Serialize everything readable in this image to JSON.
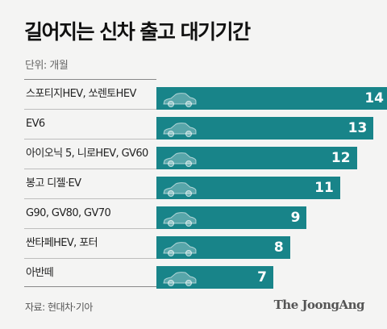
{
  "title": "길어지는 신차 출고 대기기간",
  "unit_label": "단위: 개월",
  "source": "자료: 현대차·기아",
  "brand": "The JoongAng",
  "colors": {
    "bar": "#188489",
    "background": "#f4f4f3"
  },
  "chart_data": {
    "type": "bar",
    "orientation": "horizontal",
    "categories": [
      "스포티지HEV, 쏘렌토HEV",
      "EV6",
      "아이오닉 5, 니로HEV, GV60",
      "봉고 디젤·EV",
      "G90, GV80, GV70",
      "싼타페HEV, 포터",
      "아반떼"
    ],
    "values": [
      14,
      13,
      12,
      11,
      9,
      8,
      7
    ],
    "title": "길어지는 신차 출고 대기기간",
    "unit": "개월",
    "xlim": [
      0,
      14
    ]
  }
}
